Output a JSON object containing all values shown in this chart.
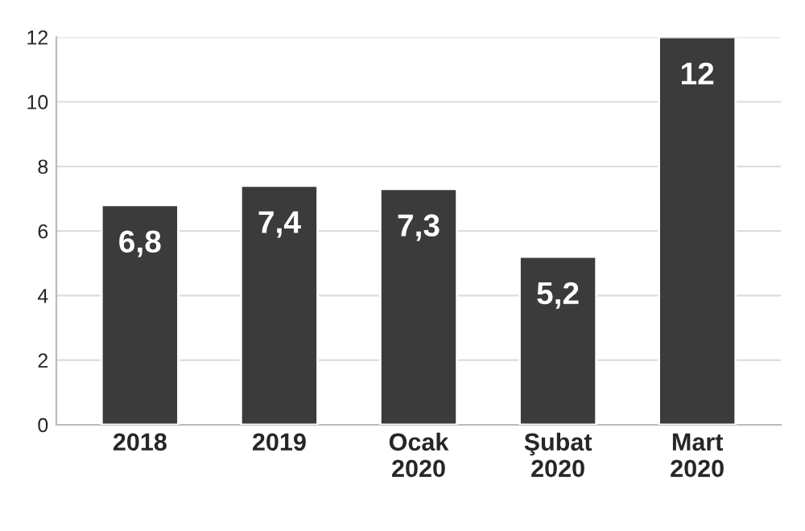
{
  "chart_data": {
    "type": "bar",
    "categories": [
      "2018",
      "2019",
      "Ocak\n2020",
      "Şubat\n2020",
      "Mart\n2020"
    ],
    "values": [
      6.8,
      7.4,
      7.3,
      5.2,
      12
    ],
    "value_labels": [
      "6,8",
      "7,4",
      "7,3",
      "5,2",
      "12"
    ],
    "color": "#3b3b3b",
    "ylim": [
      0,
      12
    ],
    "yticks": [
      0,
      2,
      4,
      6,
      8,
      10,
      12
    ],
    "grid": "y"
  }
}
